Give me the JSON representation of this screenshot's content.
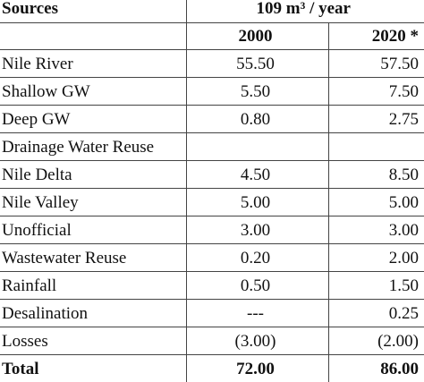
{
  "table": {
    "header": [
      "Sources",
      "109 m³ / year"
    ],
    "subheader": [
      "2000",
      "2020 *"
    ],
    "rows": [
      [
        "Nile River",
        "55.50",
        "57.50"
      ],
      [
        "Shallow GW",
        "5.50",
        "7.50"
      ],
      [
        "Deep GW",
        "0.80",
        "2.75"
      ],
      [
        "Drainage Water Reuse"
      ],
      [
        "Nile Delta",
        "4.50",
        "8.50"
      ],
      [
        "Nile Valley",
        "5.00",
        "5.00"
      ],
      [
        "Unofficial",
        "3.00",
        "3.00"
      ],
      [
        "Wastewater Reuse",
        "0.20",
        "2.00"
      ],
      [
        "Rainfall",
        "0.50",
        "1.50"
      ],
      [
        "Desalination",
        "---",
        "0.25"
      ],
      [
        "Losses",
        "(3.00)",
        "(2.00)"
      ]
    ],
    "total": [
      "Total",
      "72.00",
      "86.00"
    ]
  }
}
